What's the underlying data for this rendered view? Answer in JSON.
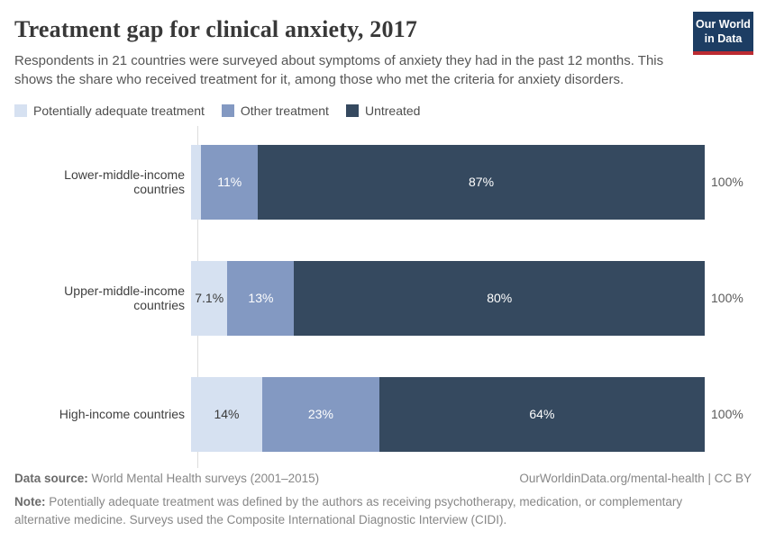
{
  "header": {
    "title": "Treatment gap for clinical anxiety, 2017",
    "subtitle": "Respondents in 21 countries were surveyed about symptoms of anxiety they had in the past 12 months. This shows the share who received treatment for it, among those who met the criteria for anxiety disorders.",
    "logo": {
      "line1": "Our World",
      "line2": "in Data"
    }
  },
  "colors": {
    "background": "#ffffff",
    "axis_line": "#dcdcdc",
    "brand_navy": "#1d3d63",
    "brand_red": "#bc2b32",
    "series_light": "#d6e1f1",
    "series_medium": "#8399c2",
    "series_dark": "#35495f"
  },
  "legend": [
    {
      "label": "Potentially adequate treatment",
      "color": "#d6e1f1"
    },
    {
      "label": "Other treatment",
      "color": "#8399c2"
    },
    {
      "label": "Untreated",
      "color": "#35495f"
    }
  ],
  "chart_data": {
    "type": "bar",
    "orientation": "horizontal",
    "stacked": true,
    "title": "Treatment gap for clinical anxiety, 2017",
    "categories": [
      "Lower-middle-income countries",
      "Upper-middle-income countries",
      "High-income countries"
    ],
    "series": [
      {
        "name": "Potentially adequate treatment",
        "color": "#d6e1f1",
        "values": [
          2,
          7.1,
          14
        ],
        "labels": [
          "",
          "7.1%",
          "14%"
        ]
      },
      {
        "name": "Other treatment",
        "color": "#8399c2",
        "values": [
          11,
          13,
          23
        ],
        "labels": [
          "11%",
          "13%",
          "23%"
        ]
      },
      {
        "name": "Untreated",
        "color": "#35495f",
        "values": [
          87,
          80,
          64
        ],
        "labels": [
          "87%",
          "80%",
          "64%"
        ]
      }
    ],
    "total_label": "100%",
    "xlim": [
      0,
      100
    ],
    "grid": false,
    "legend_position": "top"
  },
  "footer": {
    "data_source_label": "Data source:",
    "data_source_text": " World Mental Health surveys (2001–2015)",
    "link": "OurWorldinData.org/mental-health | CC BY",
    "note_label": "Note:",
    "note_text": " Potentially adequate treatment was defined by the authors as receiving psychotherapy, medication, or complementary alternative medicine. Surveys used the Composite International Diagnostic Interview (CIDI)."
  }
}
